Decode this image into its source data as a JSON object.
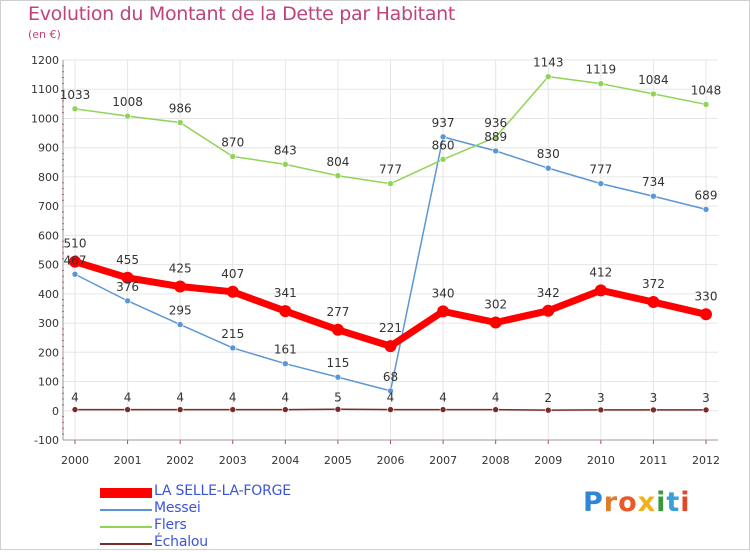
{
  "chart_data": {
    "type": "line",
    "title": "Evolution du Montant de la Dette par Habitant",
    "subtitle": "(en €)",
    "x": [
      "2000",
      "2001",
      "2002",
      "2003",
      "2004",
      "2005",
      "2006",
      "2007",
      "2008",
      "2009",
      "2010",
      "2011",
      "2012"
    ],
    "y_ticks": [
      "-100",
      "0",
      "100",
      "200",
      "300",
      "400",
      "500",
      "600",
      "700",
      "800",
      "900",
      "1000",
      "1100",
      "1200"
    ],
    "ylim": [
      -100,
      1200
    ],
    "grid": true,
    "legend_position": "bottom-left",
    "series": [
      {
        "name": "LA SELLE-LA-FORGE",
        "color": "#ff0000",
        "values": [
          510,
          455,
          425,
          407,
          341,
          277,
          221,
          340,
          302,
          342,
          412,
          372,
          330
        ]
      },
      {
        "name": "Messei",
        "color": "#5b97d5",
        "values": [
          467,
          376,
          295,
          215,
          161,
          115,
          68,
          937,
          889,
          830,
          777,
          734,
          689
        ]
      },
      {
        "name": "Flers",
        "color": "#8fd456",
        "values": [
          1033,
          1008,
          986,
          870,
          843,
          804,
          777,
          860,
          936,
          1143,
          1119,
          1084,
          1048
        ]
      },
      {
        "name": "Échalou",
        "color": "#7b2a2a",
        "values": [
          4,
          4,
          4,
          4,
          4,
          5,
          4,
          4,
          4,
          2,
          3,
          3,
          3
        ]
      }
    ],
    "data_labels": {
      "LA SELLE-LA-FORGE": [
        "510",
        "455",
        "425",
        "407",
        "341",
        "277",
        "221",
        "340",
        "302",
        "342",
        "412",
        "372",
        "330"
      ],
      "Messei": [
        "467",
        "376",
        "295",
        "215",
        "161",
        "115",
        "68",
        "937",
        "889",
        "830",
        "777",
        "734",
        "689"
      ],
      "Flers": [
        "1033",
        "1008",
        "986",
        "870",
        "843",
        "804",
        "777",
        "860",
        "936",
        "1143",
        "1119",
        "1084",
        "1048"
      ],
      "Échalou": [
        "4",
        "4",
        "4",
        "4",
        "4",
        "5",
        "4",
        "4",
        "4",
        "2",
        "3",
        "3",
        "3"
      ]
    }
  },
  "brand": {
    "letters": [
      "P",
      "r",
      "o",
      "x",
      "i",
      "t",
      "i"
    ],
    "colors": [
      "#2f86d6",
      "#e07b2a",
      "#e85a2a",
      "#f0b21c",
      "#3a9a3a",
      "#3aa0d8",
      "#e0482a"
    ]
  }
}
